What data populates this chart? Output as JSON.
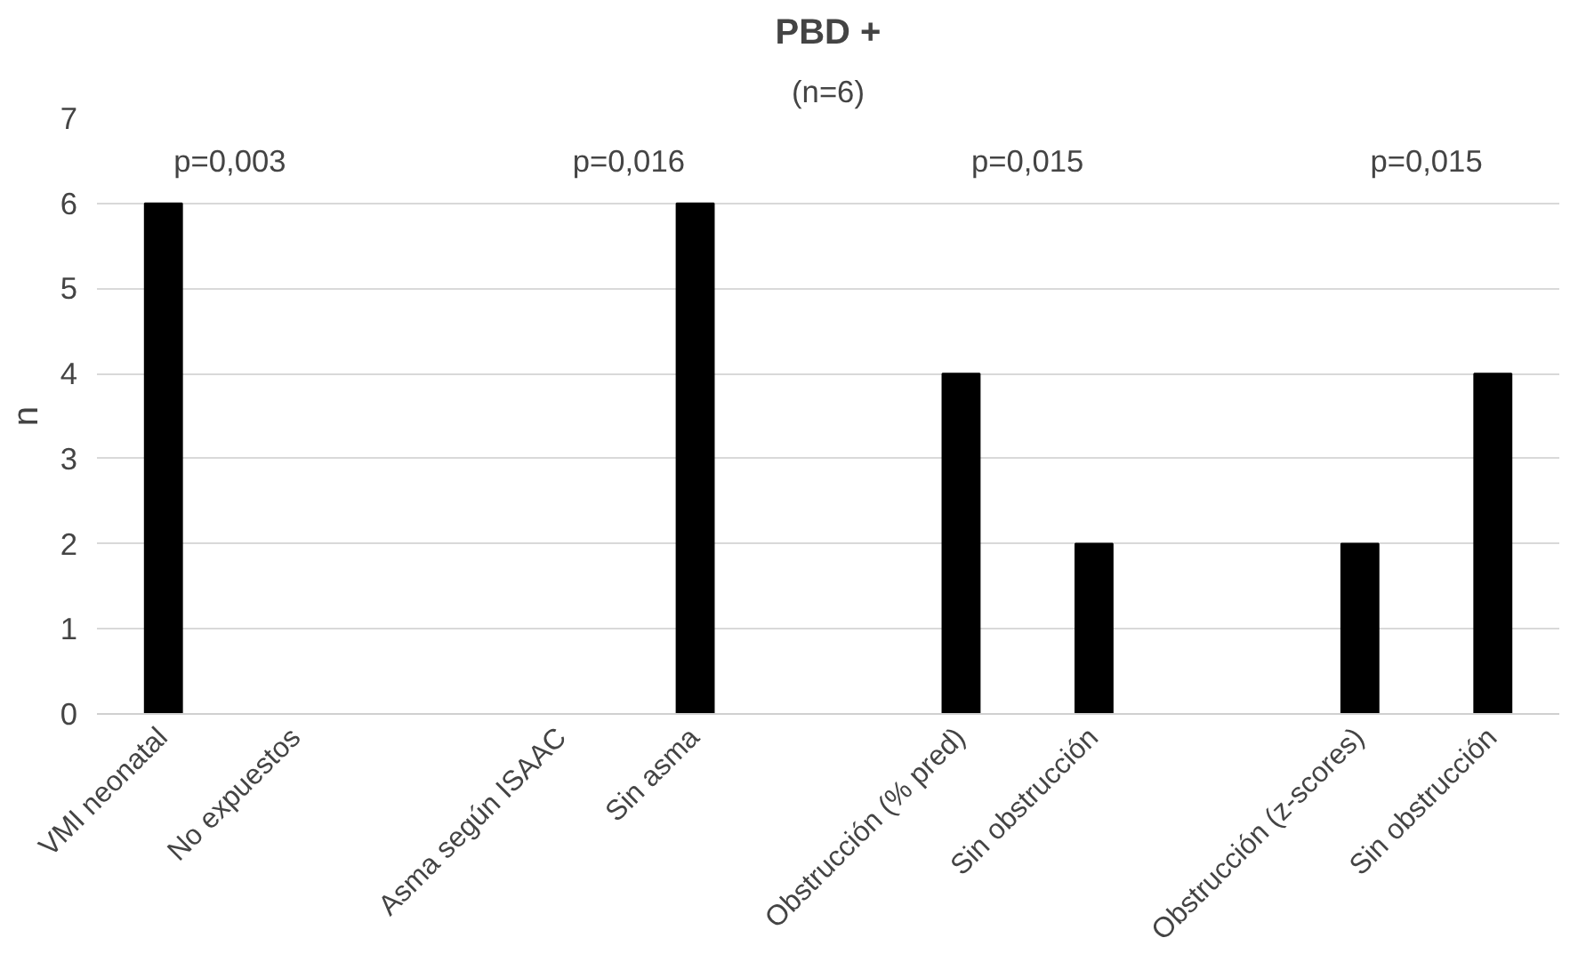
{
  "chart_data": {
    "type": "bar",
    "title": "PBD +",
    "subtitle": "(n=6)",
    "ylabel": "n",
    "categories": [
      "VMI neonatal",
      "No expuestos",
      null,
      "Asma según ISAAC",
      "Sin asma",
      null,
      "Obstrucción (% pred)",
      "Sin obstrucción",
      null,
      "Obstrucción (z-scores)",
      "Sin obstrucción"
    ],
    "values": [
      6,
      0,
      null,
      0,
      6,
      null,
      4,
      2,
      null,
      2,
      4
    ],
    "color": "#000000",
    "ylim": [
      0,
      7
    ],
    "yticks": [
      0,
      1,
      2,
      3,
      4,
      5,
      6,
      7
    ],
    "grid": "y",
    "annotations": [
      "p=0,003",
      "p=0,016",
      "p=0,015",
      "p=0,015"
    ]
  }
}
